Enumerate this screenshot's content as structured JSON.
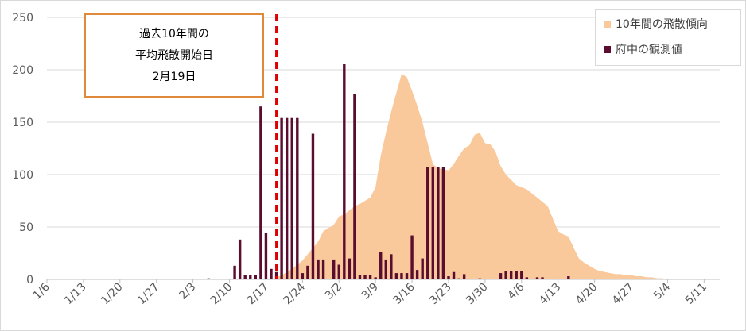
{
  "chart_data": {
    "type": "bar",
    "title": "",
    "xlabel": "",
    "ylabel": "",
    "ylim": [
      0,
      250
    ],
    "yticks": [
      0,
      50,
      100,
      150,
      200,
      250
    ],
    "xlim": [
      "1/6",
      "5/14"
    ],
    "xticks": [
      "1/6",
      "1/13",
      "1/20",
      "1/27",
      "2/3",
      "2/10",
      "2/17",
      "2/24",
      "3/2",
      "3/9",
      "3/16",
      "3/23",
      "3/30",
      "4/6",
      "4/13",
      "4/20",
      "4/27",
      "5/4",
      "5/11"
    ],
    "grid": true,
    "legend_position": "top-right",
    "colors": {
      "area": "#f9c89b",
      "bars": "#5a0d2e",
      "marker": "#e00000",
      "note_border": "#e0893b"
    },
    "series": [
      {
        "name": "10年間の飛散傾向",
        "type": "area",
        "x": [
          "2/19",
          "2/20",
          "2/21",
          "2/22",
          "2/23",
          "2/24",
          "2/25",
          "2/26",
          "2/27",
          "2/28",
          "3/1",
          "3/2",
          "3/3",
          "3/4",
          "3/5",
          "3/6",
          "3/7",
          "3/8",
          "3/9",
          "3/10",
          "3/11",
          "3/12",
          "3/13",
          "3/14",
          "3/15",
          "3/16",
          "3/17",
          "3/18",
          "3/19",
          "3/20",
          "3/21",
          "3/22",
          "3/23",
          "3/24",
          "3/25",
          "3/26",
          "3/27",
          "3/28",
          "3/29",
          "3/30",
          "3/31",
          "4/1",
          "4/2",
          "4/3",
          "4/4",
          "4/5",
          "4/6",
          "4/7",
          "4/8",
          "4/9",
          "4/10",
          "4/11",
          "4/12",
          "4/13",
          "4/14",
          "4/15",
          "4/16",
          "4/17",
          "4/18",
          "4/19",
          "4/20",
          "4/21",
          "4/22",
          "4/23",
          "4/24",
          "4/25",
          "4/26",
          "4/27",
          "4/28",
          "4/29",
          "4/30",
          "5/1",
          "5/2",
          "5/3",
          "5/4",
          "5/5",
          "5/6"
        ],
        "values": [
          2,
          4,
          7,
          10,
          14,
          18,
          24,
          30,
          36,
          46,
          52,
          60,
          62,
          66,
          70,
          72,
          75,
          78,
          88,
          118,
          140,
          160,
          178,
          196,
          193,
          180,
          166,
          150,
          130,
          110,
          106,
          105,
          104,
          110,
          118,
          125,
          128,
          138,
          140,
          130,
          129,
          122,
          108,
          100,
          95,
          90,
          88,
          86,
          82,
          78,
          74,
          70,
          58,
          46,
          43,
          41,
          30,
          20,
          16,
          13,
          10,
          8,
          7,
          6,
          5,
          5,
          4,
          4,
          3,
          3,
          2,
          2,
          1,
          1,
          0,
          0,
          0
        ]
      },
      {
        "name": "府中の観測値",
        "type": "bar",
        "x": [
          "2/6",
          "2/11",
          "2/12",
          "2/13",
          "2/14",
          "2/15",
          "2/16",
          "2/17",
          "2/18",
          "2/19",
          "2/20",
          "2/21",
          "2/22",
          "2/23",
          "2/24",
          "2/25",
          "2/26",
          "2/27",
          "2/28",
          "3/1",
          "3/2",
          "3/3",
          "3/4",
          "3/5",
          "3/6",
          "3/7",
          "3/8",
          "3/9",
          "3/10",
          "3/11",
          "3/12",
          "3/13",
          "3/14",
          "3/15",
          "3/16",
          "3/17",
          "3/18",
          "3/19",
          "3/20",
          "3/21",
          "3/22",
          "3/23",
          "3/24",
          "3/25",
          "3/26",
          "3/27",
          "3/29",
          "3/30",
          "4/2",
          "4/3",
          "4/4",
          "4/5",
          "4/6",
          "4/7",
          "4/9",
          "4/10",
          "4/15"
        ],
        "values": [
          1,
          13,
          38,
          4,
          4,
          4,
          165,
          44,
          10,
          7,
          154,
          154,
          154,
          154,
          6,
          13,
          139,
          19,
          19,
          19,
          14,
          206,
          20,
          177,
          4,
          4,
          4,
          2,
          26,
          19,
          24,
          6,
          6,
          6,
          42,
          9,
          20,
          107,
          107,
          107,
          107,
          3,
          7,
          1,
          5,
          0,
          1,
          0,
          6,
          8,
          8,
          8,
          8,
          2,
          2,
          2,
          3
        ]
      }
    ],
    "marker": {
      "type": "vertical-dashed-line",
      "x": "2/19"
    },
    "annotation": {
      "lines": [
        "過去10年間の",
        "平均飛散開始日",
        "2月19日"
      ]
    }
  }
}
